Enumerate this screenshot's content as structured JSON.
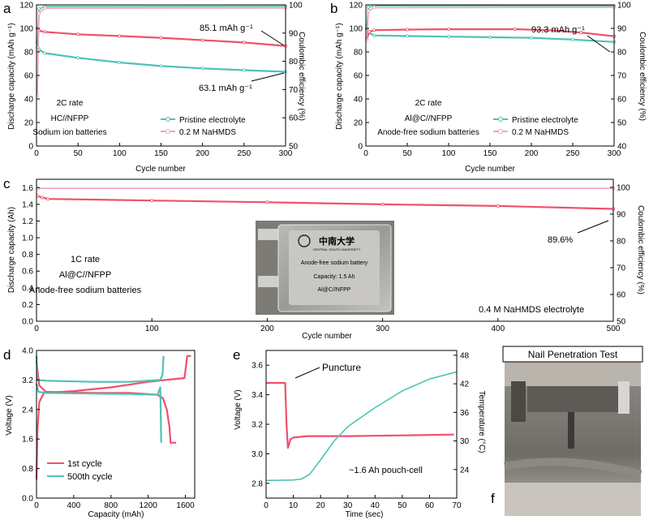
{
  "colors": {
    "pink": "#f0506e",
    "pink_light": "#f4a3b3",
    "teal": "#4ec3b4",
    "axis": "#000000"
  },
  "panels": {
    "a": {
      "letter": "a",
      "left_label": "Discharge capacity (mAh g⁻¹)",
      "right_label": "Coulombic efficiency (%)",
      "xlabel": "Cycle number",
      "annot_pink": "85.1 mAh g⁻¹",
      "annot_teal": "63.1 mAh g⁻¹",
      "text_lines": [
        "2C rate",
        "HC//NFPP",
        "Sodium ion batteries"
      ],
      "legend": [
        "Pristine electrolyte",
        "0.2 M NaHMDS"
      ]
    },
    "b": {
      "letter": "b",
      "left_label": "Discharge capacity (mAh g⁻¹)",
      "right_label": "Coulombic efficiency (%)",
      "xlabel": "Cycle number",
      "annot_pink": "93.3 mAh g⁻¹",
      "text_lines": [
        "2C rate",
        "Al@C//NFPP",
        "Anode-free sodium batteries"
      ],
      "legend": [
        "Pristine electrolyte",
        "0.2 M NaHMDS"
      ]
    },
    "c": {
      "letter": "c",
      "left_label": "Discharge capacity (Ah)",
      "right_label": "Coulombic efficiency (%)",
      "xlabel": "Cycle number",
      "annot": "89.6%",
      "text_lines": [
        "1C rate",
        "Al@C//NFPP",
        "Anode-free sodium batteries"
      ],
      "electrolyte": "0.4 M NaHMDS electrolyte",
      "photo": {
        "logo": "中南大学",
        "logo_sub": "CENTRAL SOUTH UNIVERSITY",
        "line1": "Anode-free sodium battery",
        "line2": "Capacity: 1.5 Ah",
        "line3": "Al@C//NFPP"
      }
    },
    "d": {
      "letter": "d",
      "ylabel": "Voltage (V)",
      "xlabel": "Capacity (mAh)",
      "legend": [
        "1st cycle",
        "500th cycle"
      ]
    },
    "e": {
      "letter": "e",
      "left_label": "Voltage (V)",
      "right_label": "Temperature (°C)",
      "xlabel": "Time (sec)",
      "annot": "Puncture",
      "note": "~1.6 Ah pouch-cell"
    },
    "f": {
      "letter": "f",
      "title": "Nail Penetration Test"
    }
  },
  "chart_data": [
    {
      "id": "a",
      "type": "line",
      "xlim": [
        0,
        300
      ],
      "xticks": [
        0,
        50,
        100,
        150,
        200,
        250,
        300
      ],
      "ylim": [
        0,
        120
      ],
      "yticks": [
        0,
        20,
        40,
        60,
        80,
        100,
        120
      ],
      "y2lim": [
        50,
        100
      ],
      "y2ticks": [
        50,
        60,
        70,
        80,
        90,
        100
      ],
      "series": [
        {
          "name": "Pristine electrolyte",
          "axis": "left",
          "color": "#4ec3b4",
          "points": [
            [
              1,
              88
            ],
            [
              3,
              82
            ],
            [
              10,
              79
            ],
            [
              50,
              75
            ],
            [
              100,
              71
            ],
            [
              150,
              68
            ],
            [
              200,
              66
            ],
            [
              250,
              64.5
            ],
            [
              300,
              63.1
            ]
          ]
        },
        {
          "name": "0.2 M NaHMDS",
          "axis": "left",
          "color": "#f0506e",
          "points": [
            [
              1,
              100
            ],
            [
              3,
              98
            ],
            [
              10,
              97
            ],
            [
              50,
              95
            ],
            [
              100,
              93.5
            ],
            [
              150,
              92
            ],
            [
              200,
              90
            ],
            [
              250,
              88
            ],
            [
              300,
              85.1
            ]
          ]
        },
        {
          "name": "Pristine electrolyte CE",
          "axis": "right",
          "color": "#4ec3b4",
          "points": [
            [
              1,
              85
            ],
            [
              3,
              98.5
            ],
            [
              10,
              99.4
            ],
            [
              300,
              99.5
            ]
          ]
        },
        {
          "name": "0.2 M NaHMDS CE",
          "axis": "right",
          "color": "#f4a3b3",
          "points": [
            [
              1,
              68
            ],
            [
              3,
              97
            ],
            [
              10,
              98.8
            ],
            [
              300,
              98.9
            ]
          ]
        }
      ]
    },
    {
      "id": "b",
      "type": "line",
      "xlim": [
        0,
        300
      ],
      "xticks": [
        0,
        50,
        100,
        150,
        200,
        250,
        300
      ],
      "ylim": [
        0,
        120
      ],
      "yticks": [
        0,
        20,
        40,
        60,
        80,
        100,
        120
      ],
      "y2lim": [
        40,
        100
      ],
      "y2ticks": [
        40,
        50,
        60,
        70,
        80,
        90,
        100
      ],
      "series": [
        {
          "name": "Pristine electrolyte",
          "axis": "left",
          "color": "#4ec3b4",
          "points": [
            [
              1,
              99
            ],
            [
              4,
              96
            ],
            [
              10,
              94
            ],
            [
              50,
              93.5
            ],
            [
              100,
              93
            ],
            [
              150,
              92.5
            ],
            [
              200,
              92
            ],
            [
              250,
              90.5
            ],
            [
              300,
              88.5
            ]
          ]
        },
        {
          "name": "0.2 M NaHMDS",
          "axis": "left",
          "color": "#f0506e",
          "points": [
            [
              1,
              91
            ],
            [
              4,
              97
            ],
            [
              10,
              98.5
            ],
            [
              50,
              99
            ],
            [
              100,
              99.3
            ],
            [
              180,
              99.3
            ],
            [
              220,
              98.5
            ],
            [
              260,
              96.5
            ],
            [
              300,
              93.3
            ]
          ]
        },
        {
          "name": "Pristine electrolyte CE",
          "axis": "right",
          "color": "#4ec3b4",
          "points": [
            [
              1,
              90
            ],
            [
              3,
              99
            ],
            [
              10,
              99.6
            ],
            [
              300,
              99.6
            ]
          ]
        },
        {
          "name": "0.2 M NaHMDS CE",
          "axis": "right",
          "color": "#f4a3b3",
          "points": [
            [
              1,
              85
            ],
            [
              3,
              97.5
            ],
            [
              10,
              98.8
            ],
            [
              300,
              99
            ]
          ]
        }
      ]
    },
    {
      "id": "c",
      "type": "line",
      "xlim": [
        0,
        500
      ],
      "xticks": [
        0,
        100,
        200,
        300,
        400,
        500
      ],
      "ylim": [
        0.0,
        1.7
      ],
      "yticks": [
        0.0,
        0.2,
        0.4,
        0.6,
        0.8,
        1.0,
        1.2,
        1.4,
        1.6
      ],
      "y2lim": [
        50,
        103
      ],
      "y2ticks": [
        50,
        60,
        70,
        80,
        90,
        100
      ],
      "series": [
        {
          "name": "Discharge capacity",
          "axis": "left",
          "color": "#f0506e",
          "points": [
            [
              1,
              1.5
            ],
            [
              5,
              1.48
            ],
            [
              10,
              1.465
            ],
            [
              100,
              1.445
            ],
            [
              200,
              1.425
            ],
            [
              300,
              1.4
            ],
            [
              400,
              1.38
            ],
            [
              500,
              1.345
            ]
          ]
        },
        {
          "name": "Coulombic efficiency",
          "axis": "right",
          "color": "#f4a3b3",
          "points": [
            [
              1,
              99.6
            ],
            [
              500,
              99.6
            ]
          ]
        }
      ]
    },
    {
      "id": "d",
      "type": "line",
      "xlim": [
        0,
        1700
      ],
      "xticks": [
        0,
        400,
        800,
        1200,
        1600
      ],
      "ylim": [
        0.0,
        4.0
      ],
      "yticks": [
        0.0,
        0.8,
        1.6,
        2.4,
        3.2,
        4.0
      ],
      "series": [
        {
          "name": "1st cycle charge",
          "color": "#f0506e",
          "points": [
            [
              0,
              0.5
            ],
            [
              10,
              1.8
            ],
            [
              30,
              2.6
            ],
            [
              80,
              2.85
            ],
            [
              400,
              2.9
            ],
            [
              800,
              3.0
            ],
            [
              1200,
              3.15
            ],
            [
              1500,
              3.23
            ],
            [
              1590,
              3.25
            ],
            [
              1620,
              3.85
            ],
            [
              1660,
              3.85
            ]
          ]
        },
        {
          "name": "1st cycle discharge",
          "color": "#f0506e",
          "points": [
            [
              0,
              3.7
            ],
            [
              30,
              3.05
            ],
            [
              100,
              2.88
            ],
            [
              600,
              2.85
            ],
            [
              1000,
              2.85
            ],
            [
              1300,
              2.8
            ],
            [
              1360,
              2.7
            ],
            [
              1400,
              2.4
            ],
            [
              1430,
              1.9
            ],
            [
              1440,
              1.5
            ],
            [
              1500,
              1.5
            ]
          ]
        },
        {
          "name": "500th cycle charge",
          "color": "#4ec3b4",
          "points": [
            [
              0,
              3.1
            ],
            [
              20,
              2.88
            ],
            [
              100,
              2.85
            ],
            [
              600,
              2.83
            ],
            [
              1000,
              2.82
            ],
            [
              1300,
              2.8
            ],
            [
              1330,
              3.0
            ],
            [
              1340,
              1.5
            ]
          ]
        },
        {
          "name": "500th cycle discharge",
          "color": "#4ec3b4",
          "points": [
            [
              0,
              3.85
            ],
            [
              10,
              3.2
            ],
            [
              100,
              3.18
            ],
            [
              600,
              3.15
            ],
            [
              1000,
              3.15
            ],
            [
              1330,
              3.2
            ],
            [
              1355,
              3.35
            ],
            [
              1365,
              3.85
            ]
          ]
        }
      ]
    },
    {
      "id": "e",
      "type": "line",
      "xlim": [
        0,
        70
      ],
      "xticks": [
        0,
        10,
        20,
        30,
        40,
        50,
        60,
        70
      ],
      "ylim": [
        2.7,
        3.7
      ],
      "yticks": [
        2.8,
        3.0,
        3.2,
        3.4,
        3.6
      ],
      "y2lim": [
        18,
        49
      ],
      "y2ticks": [
        24,
        30,
        36,
        42,
        48
      ],
      "series": [
        {
          "name": "Voltage",
          "axis": "left",
          "color": "#f0506e",
          "points": [
            [
              0,
              3.48
            ],
            [
              7,
              3.48
            ],
            [
              7.5,
              3.2
            ],
            [
              8,
              3.04
            ],
            [
              9,
              3.1
            ],
            [
              10,
              3.11
            ],
            [
              15,
              3.12
            ],
            [
              30,
              3.12
            ],
            [
              50,
              3.125
            ],
            [
              69,
              3.13
            ]
          ]
        },
        {
          "name": "Temperature",
          "axis": "right",
          "color": "#4ec3b4",
          "points": [
            [
              0,
              21.7
            ],
            [
              10,
              21.8
            ],
            [
              13,
              22
            ],
            [
              16,
              23
            ],
            [
              20,
              26
            ],
            [
              25,
              30
            ],
            [
              30,
              33
            ],
            [
              40,
              37
            ],
            [
              50,
              40.5
            ],
            [
              60,
              43
            ],
            [
              70,
              44.5
            ]
          ]
        }
      ]
    }
  ]
}
